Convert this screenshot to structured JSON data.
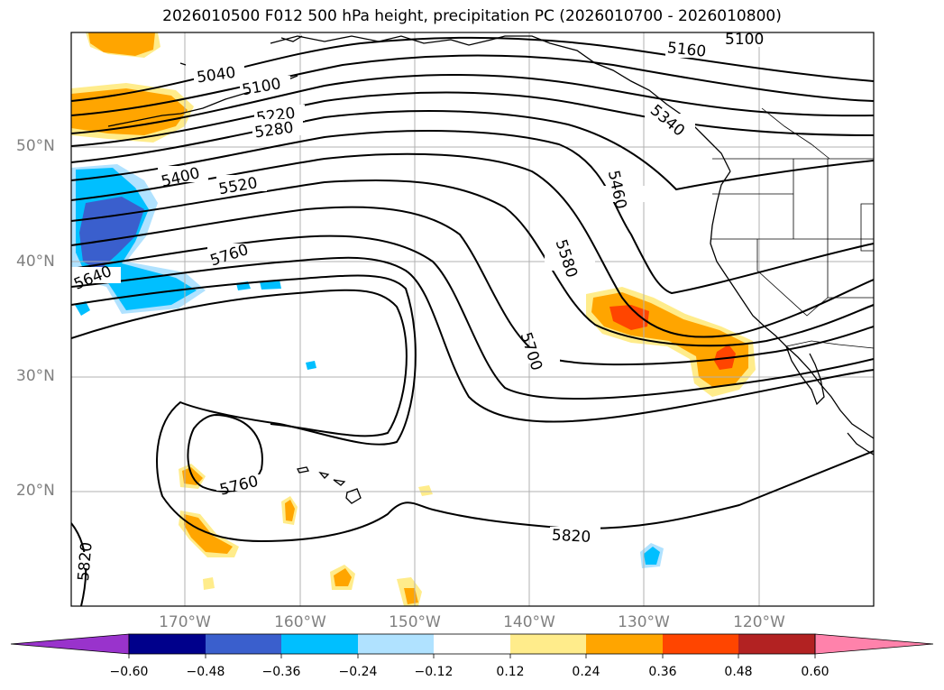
{
  "title": "2026010500 F012 500 hPa height, precipitation PC (2026010700 - 2026010800)",
  "map": {
    "lon_range": [
      -180,
      -110
    ],
    "lat_range": [
      10,
      60
    ],
    "lat_labels": [
      {
        "value": 50,
        "text": "50°N"
      },
      {
        "value": 40,
        "text": "40°N"
      },
      {
        "value": 30,
        "text": "30°N"
      },
      {
        "value": 20,
        "text": "20°N"
      }
    ],
    "lon_labels": [
      {
        "value": -170,
        "text": "170°W"
      },
      {
        "value": -160,
        "text": "160°W"
      },
      {
        "value": -150,
        "text": "150°W"
      },
      {
        "value": -140,
        "text": "140°W"
      },
      {
        "value": -130,
        "text": "130°W"
      },
      {
        "value": -120,
        "text": "120°W"
      }
    ],
    "grid": true,
    "contour_labels": [
      "5100",
      "5160",
      "5040",
      "5100",
      "5220",
      "5280",
      "5340",
      "5400",
      "5520",
      "5460",
      "5580",
      "5640",
      "5760",
      "5700",
      "5760",
      "5820",
      "5820"
    ]
  },
  "colorbar": {
    "colors": [
      "#9933cc",
      "#00008b",
      "#3a5fcd",
      "#00bfff",
      "#b0e2ff",
      "#ffffff",
      "#ffec8b",
      "#ffa500",
      "#ff4500",
      "#b22222",
      "#ff82ab"
    ],
    "ticks": [
      "−0.60",
      "−0.48",
      "−0.36",
      "−0.24",
      "−0.12",
      "0.12",
      "0.24",
      "0.36",
      "0.48",
      "0.60"
    ]
  }
}
